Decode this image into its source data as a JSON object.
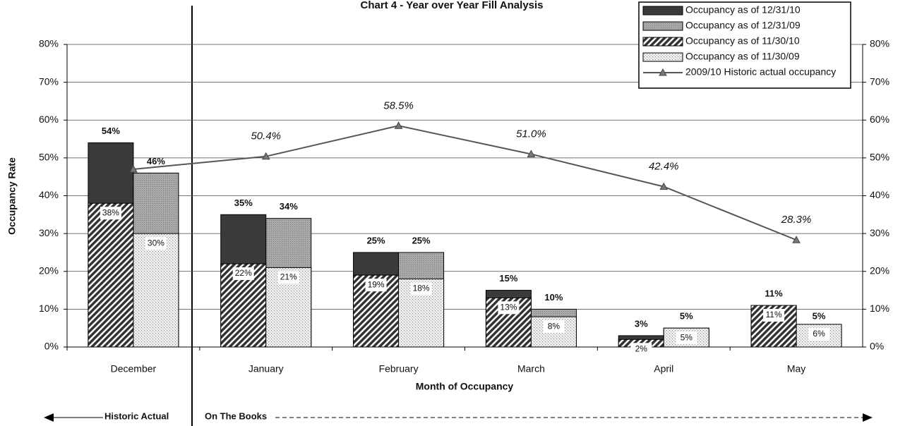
{
  "chart_data": {
    "type": "bar",
    "title": "Chart 4 - Year over Year Fill Analysis",
    "y_label": "Occupancy Rate",
    "x_label": "Month of Occupancy",
    "annotations": {
      "historic": "Historic Actual",
      "books": "On The Books"
    },
    "categories": [
      "December",
      "January",
      "February",
      "March",
      "April",
      "May"
    ],
    "series": [
      {
        "name": "Occupancy as of 12/31/10",
        "color": "#3a3a3a",
        "pattern": "solid",
        "values": [
          54,
          35,
          25,
          15,
          3,
          11
        ],
        "value_labels": [
          "54%",
          "35%",
          "25%",
          "15%",
          "3%",
          "11%"
        ]
      },
      {
        "name": "Occupancy as of 12/31/09",
        "color": "#9a9a9a",
        "pattern": "solid",
        "values": [
          46,
          34,
          25,
          10,
          5,
          5
        ],
        "value_labels": [
          "46%",
          "34%",
          "25%",
          "10%",
          "5%",
          "5%"
        ]
      },
      {
        "name": "Occupancy as of 11/30/10",
        "color": "#333333",
        "pattern": "hatch",
        "values": [
          38,
          22,
          19,
          13,
          2,
          11
        ],
        "value_labels": [
          "38%",
          "22%",
          "19%",
          "13%",
          "2%",
          "11%"
        ]
      },
      {
        "name": "Occupancy as of 11/30/09",
        "color": "#b0b0b0",
        "pattern": "dots",
        "values": [
          30,
          21,
          18,
          8,
          5,
          6
        ],
        "value_labels": [
          "30%",
          "21%",
          "18%",
          "8%",
          "5%",
          "6%"
        ]
      },
      {
        "name": "2009/10 Historic actual occupancy",
        "type": "line",
        "color": "#555555",
        "values": [
          47,
          50.4,
          58.5,
          51.0,
          42.4,
          28.3
        ],
        "value_labels": [
          null,
          "50.4%",
          "58.5%",
          "51.0%",
          "42.4%",
          "28.3%"
        ]
      }
    ],
    "ylim": [
      0,
      80
    ],
    "yticks": [
      {
        "value": 0,
        "label": "0%"
      },
      {
        "value": 10,
        "label": "10%"
      },
      {
        "value": 20,
        "label": "20%"
      },
      {
        "value": 30,
        "label": "30%"
      },
      {
        "value": 40,
        "label": "40%"
      },
      {
        "value": 50,
        "label": "50%"
      },
      {
        "value": 60,
        "label": "60%"
      },
      {
        "value": 70,
        "label": "70%"
      },
      {
        "value": 80,
        "label": "80%"
      }
    ],
    "y2lim": [
      0,
      80
    ],
    "y2ticks": [
      {
        "value": 0,
        "label": "0%"
      },
      {
        "value": 10,
        "label": "10%"
      },
      {
        "value": 20,
        "label": "20%"
      },
      {
        "value": 30,
        "label": "30%"
      },
      {
        "value": 40,
        "label": "40%"
      },
      {
        "value": 50,
        "label": "50%"
      },
      {
        "value": 60,
        "label": "60%"
      },
      {
        "value": 70,
        "label": "70%"
      },
      {
        "value": 80,
        "label": "80%"
      }
    ],
    "grid": true,
    "legend": "top-right"
  }
}
